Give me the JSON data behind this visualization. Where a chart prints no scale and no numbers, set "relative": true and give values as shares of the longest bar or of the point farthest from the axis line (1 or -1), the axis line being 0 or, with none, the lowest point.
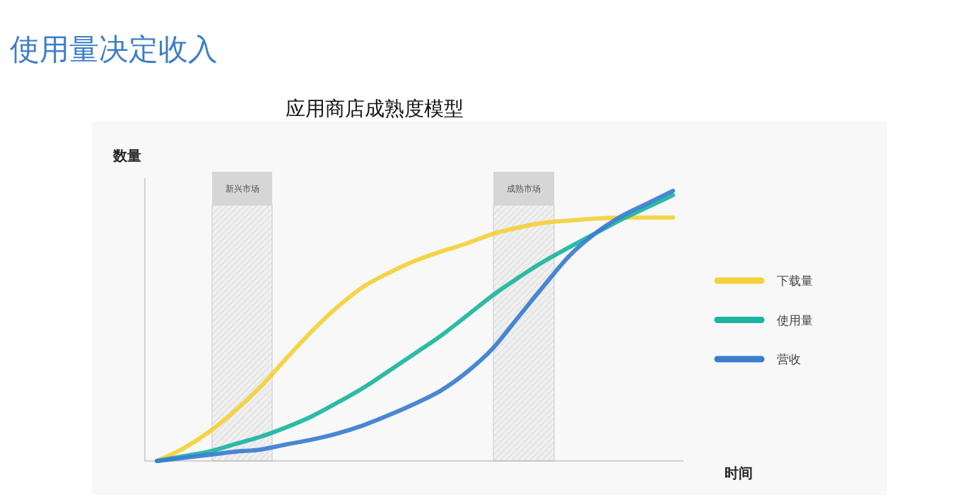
{
  "chart_data": {
    "type": "line",
    "title": "使用量决定收入",
    "subtitle": "应用商店成熟度模型",
    "xlabel": "时间",
    "ylabel": "数量",
    "relative": true,
    "legend": "right",
    "marker": "none",
    "line_style": "solid",
    "categories": [
      null,
      null,
      null,
      null,
      null,
      null,
      null,
      null,
      null,
      null,
      null,
      null,
      null,
      null,
      null,
      null,
      null,
      null,
      null,
      null,
      null
    ],
    "series": [
      {
        "name": "下载量",
        "color": "#f5d03a",
        "values": [
          0,
          0.045,
          0.106,
          0.183,
          0.273,
          0.378,
          0.48,
          0.57,
          0.645,
          0.697,
          0.741,
          0.775,
          0.805,
          0.84,
          0.864,
          0.882,
          0.89,
          0.897,
          0.901,
          0.901,
          0.901
        ]
      },
      {
        "name": "使用量",
        "color": "#1ab5a0",
        "values": [
          0,
          0.017,
          0.034,
          0.062,
          0.089,
          0.124,
          0.165,
          0.216,
          0.271,
          0.334,
          0.398,
          0.463,
          0.537,
          0.612,
          0.678,
          0.739,
          0.792,
          0.843,
          0.894,
          0.939,
          0.984
        ]
      },
      {
        "name": "营收",
        "color": "#3a7dd0",
        "values": [
          0,
          0.011,
          0.022,
          0.034,
          0.042,
          0.061,
          0.079,
          0.102,
          0.132,
          0.17,
          0.212,
          0.26,
          0.328,
          0.415,
          0.532,
          0.649,
          0.761,
          0.843,
          0.906,
          0.953,
          1
        ]
      }
    ],
    "annotations": [
      "新兴市场",
      "成熟市场"
    ]
  }
}
